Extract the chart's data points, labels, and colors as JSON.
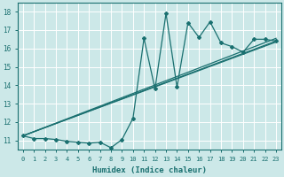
{
  "xlabel": "Humidex (Indice chaleur)",
  "xlim": [
    -0.5,
    23.5
  ],
  "ylim": [
    10.5,
    18.5
  ],
  "xticks": [
    0,
    1,
    2,
    3,
    4,
    5,
    6,
    7,
    8,
    9,
    10,
    11,
    12,
    13,
    14,
    15,
    16,
    17,
    18,
    19,
    20,
    21,
    22,
    23
  ],
  "yticks": [
    11,
    12,
    13,
    14,
    15,
    16,
    17,
    18
  ],
  "bg_color": "#cce8e8",
  "line_color": "#1a7070",
  "grid_color": "#ffffff",
  "jagged_x": [
    0,
    1,
    2,
    3,
    4,
    5,
    6,
    7,
    8,
    9,
    10,
    11,
    12,
    13,
    14,
    15,
    16,
    17,
    18,
    19,
    20,
    21,
    22,
    23
  ],
  "jagged_y": [
    11.25,
    11.1,
    11.1,
    11.05,
    10.95,
    10.9,
    10.85,
    10.9,
    10.6,
    11.05,
    12.2,
    16.55,
    13.8,
    17.9,
    13.9,
    17.4,
    16.6,
    17.45,
    16.3,
    16.1,
    15.8,
    16.5,
    16.5,
    16.4
  ],
  "line1_x": [
    0,
    23
  ],
  "line1_y": [
    11.25,
    16.4
  ],
  "line2_x": [
    0,
    23
  ],
  "line2_y": [
    11.25,
    16.35
  ],
  "line3_x": [
    0,
    23
  ],
  "line3_y": [
    11.25,
    16.55
  ]
}
